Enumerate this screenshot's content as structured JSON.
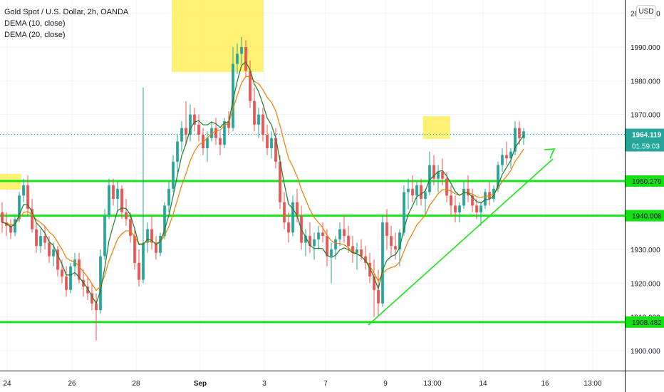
{
  "legend": {
    "title": "Gold Spot / U.S. Dollar, 2h, OANDA",
    "indicators": [
      "DEMA (10, close)",
      "DEMA (20, close)"
    ]
  },
  "currency": "USD",
  "countdown": "01:59:03",
  "colors": {
    "up": "#26a69a",
    "down": "#ef5350",
    "dema10": "#1b7a2e",
    "dema20": "#f57c00",
    "level_line": "#19e619",
    "highlight": "#ffef5a",
    "last_price_badge": "#26a69a",
    "level_badge": "#16e016"
  },
  "chart_data": {
    "type": "candlestick",
    "title": "Gold Spot / U.S. Dollar, 2h, OANDA",
    "interval": "2h",
    "ylim": [
      1895,
      2005
    ],
    "y_ticks": [
      1900,
      1910,
      1920,
      1930,
      1940,
      1950,
      1960,
      1970,
      1980,
      1990,
      2000
    ],
    "y_tick_labels": [
      "1900.000",
      "1910.000",
      "1920.000",
      "1930.000",
      "1940.000",
      "1950.000",
      "1960.000",
      "1970.000",
      "1980.000",
      "1990.000",
      "2000.000"
    ],
    "x_tick_labels": [
      "24",
      "26",
      "28",
      "Sep",
      "3",
      "7",
      "9",
      "13:00",
      "14",
      "16",
      "13:00"
    ],
    "last_price": 1964.119,
    "horizontal_levels": [
      1950.279,
      1940.008,
      1908.482
    ],
    "candles_approx": [
      [
        1941,
        1944,
        1935,
        1938
      ],
      [
        1938,
        1941,
        1934,
        1937
      ],
      [
        1937,
        1939,
        1933,
        1935
      ],
      [
        1935,
        1940,
        1934,
        1939
      ],
      [
        1939,
        1947,
        1938,
        1946
      ],
      [
        1946,
        1951,
        1944,
        1949
      ],
      [
        1949,
        1952,
        1940,
        1942
      ],
      [
        1942,
        1945,
        1935,
        1936
      ],
      [
        1936,
        1938,
        1929,
        1931
      ],
      [
        1931,
        1936,
        1929,
        1934
      ],
      [
        1934,
        1937,
        1930,
        1932
      ],
      [
        1932,
        1934,
        1926,
        1928
      ],
      [
        1928,
        1932,
        1925,
        1930
      ],
      [
        1930,
        1931,
        1922,
        1924
      ],
      [
        1924,
        1927,
        1920,
        1922
      ],
      [
        1922,
        1925,
        1916,
        1918
      ],
      [
        1918,
        1926,
        1917,
        1925
      ],
      [
        1925,
        1929,
        1922,
        1927
      ],
      [
        1927,
        1929,
        1920,
        1921
      ],
      [
        1921,
        1924,
        1916,
        1919
      ],
      [
        1919,
        1922,
        1915,
        1917
      ],
      [
        1917,
        1920,
        1912,
        1914
      ],
      [
        1914,
        1917,
        1903,
        1912
      ],
      [
        1912,
        1930,
        1911,
        1928
      ],
      [
        1928,
        1942,
        1927,
        1940
      ],
      [
        1940,
        1951,
        1939,
        1949
      ],
      [
        1949,
        1951,
        1943,
        1945
      ],
      [
        1945,
        1950,
        1941,
        1948
      ],
      [
        1948,
        1949,
        1939,
        1941
      ],
      [
        1941,
        1945,
        1937,
        1939
      ],
      [
        1939,
        1941,
        1932,
        1934
      ],
      [
        1934,
        1936,
        1924,
        1926
      ],
      [
        1926,
        1930,
        1919,
        1921
      ],
      [
        1921,
        1978,
        1920,
        1932
      ],
      [
        1932,
        1938,
        1929,
        1936
      ],
      [
        1936,
        1940,
        1930,
        1932
      ],
      [
        1932,
        1934,
        1927,
        1929
      ],
      [
        1929,
        1935,
        1928,
        1934
      ],
      [
        1934,
        1944,
        1933,
        1943
      ],
      [
        1943,
        1950,
        1941,
        1948
      ],
      [
        1948,
        1958,
        1947,
        1956
      ],
      [
        1956,
        1964,
        1953,
        1962
      ],
      [
        1962,
        1968,
        1959,
        1966
      ],
      [
        1966,
        1974,
        1961,
        1964
      ],
      [
        1964,
        1973,
        1962,
        1970
      ],
      [
        1970,
        1972,
        1965,
        1967
      ],
      [
        1967,
        1970,
        1962,
        1964
      ],
      [
        1964,
        1966,
        1958,
        1960
      ],
      [
        1960,
        1965,
        1956,
        1963
      ],
      [
        1963,
        1968,
        1962,
        1966
      ],
      [
        1966,
        1969,
        1961,
        1963
      ],
      [
        1963,
        1965,
        1958,
        1961
      ],
      [
        1961,
        1969,
        1960,
        1968
      ],
      [
        1968,
        1971,
        1964,
        1966
      ],
      [
        1966,
        1990,
        1965,
        1985
      ],
      [
        1985,
        1991,
        1982,
        1988
      ],
      [
        1988,
        1993,
        1985,
        1990
      ],
      [
        1990,
        1992,
        1981,
        1983
      ],
      [
        1983,
        1986,
        1972,
        1974
      ],
      [
        1974,
        1978,
        1965,
        1967
      ],
      [
        1967,
        1972,
        1963,
        1970
      ],
      [
        1970,
        1972,
        1962,
        1964
      ],
      [
        1964,
        1967,
        1958,
        1960
      ],
      [
        1960,
        1965,
        1957,
        1963
      ],
      [
        1963,
        1966,
        1954,
        1956
      ],
      [
        1956,
        1958,
        1942,
        1944
      ],
      [
        1944,
        1947,
        1936,
        1938
      ],
      [
        1938,
        1941,
        1932,
        1935
      ],
      [
        1935,
        1946,
        1934,
        1944
      ],
      [
        1944,
        1948,
        1938,
        1940
      ],
      [
        1940,
        1943,
        1930,
        1932
      ],
      [
        1932,
        1936,
        1928,
        1934
      ],
      [
        1934,
        1938,
        1929,
        1931
      ],
      [
        1931,
        1935,
        1927,
        1933
      ],
      [
        1933,
        1937,
        1930,
        1935
      ],
      [
        1935,
        1938,
        1932,
        1934
      ],
      [
        1934,
        1936,
        1925,
        1928
      ],
      [
        1928,
        1932,
        1920,
        1930
      ],
      [
        1930,
        1934,
        1927,
        1933
      ],
      [
        1933,
        1938,
        1931,
        1936
      ],
      [
        1936,
        1940,
        1932,
        1934
      ],
      [
        1934,
        1937,
        1929,
        1931
      ],
      [
        1931,
        1934,
        1926,
        1929
      ],
      [
        1929,
        1932,
        1924,
        1930
      ],
      [
        1930,
        1933,
        1927,
        1928
      ],
      [
        1928,
        1931,
        1924,
        1926
      ],
      [
        1926,
        1929,
        1920,
        1922
      ],
      [
        1922,
        1927,
        1910,
        1918
      ],
      [
        1918,
        1924,
        1910,
        1914
      ],
      [
        1914,
        1940,
        1913,
        1938
      ],
      [
        1938,
        1942,
        1930,
        1934
      ],
      [
        1934,
        1937,
        1928,
        1931
      ],
      [
        1931,
        1935,
        1927,
        1930
      ],
      [
        1930,
        1936,
        1925,
        1935
      ],
      [
        1935,
        1949,
        1934,
        1947
      ],
      [
        1947,
        1951,
        1942,
        1948
      ],
      [
        1948,
        1952,
        1944,
        1946
      ],
      [
        1946,
        1950,
        1943,
        1949
      ],
      [
        1949,
        1951,
        1943,
        1945
      ],
      [
        1945,
        1948,
        1940,
        1947
      ],
      [
        1947,
        1959,
        1946,
        1955
      ],
      [
        1955,
        1958,
        1949,
        1951
      ],
      [
        1951,
        1955,
        1947,
        1953
      ],
      [
        1953,
        1957,
        1949,
        1951
      ],
      [
        1951,
        1953,
        1944,
        1946
      ],
      [
        1946,
        1949,
        1940,
        1943
      ],
      [
        1943,
        1946,
        1938,
        1941
      ],
      [
        1941,
        1944,
        1938,
        1943
      ],
      [
        1943,
        1950,
        1942,
        1948
      ],
      [
        1948,
        1952,
        1944,
        1946
      ],
      [
        1946,
        1948,
        1941,
        1943
      ],
      [
        1943,
        1945,
        1939,
        1941
      ],
      [
        1941,
        1944,
        1937,
        1943
      ],
      [
        1943,
        1948,
        1942,
        1947
      ],
      [
        1947,
        1950,
        1943,
        1945
      ],
      [
        1945,
        1949,
        1944,
        1948
      ],
      [
        1948,
        1956,
        1947,
        1955
      ],
      [
        1955,
        1960,
        1953,
        1958
      ],
      [
        1958,
        1962,
        1955,
        1957
      ],
      [
        1957,
        1960,
        1954,
        1959
      ],
      [
        1959,
        1968,
        1958,
        1966
      ],
      [
        1966,
        1968,
        1961,
        1963
      ],
      [
        1963,
        1966,
        1961,
        1965
      ]
    ]
  }
}
